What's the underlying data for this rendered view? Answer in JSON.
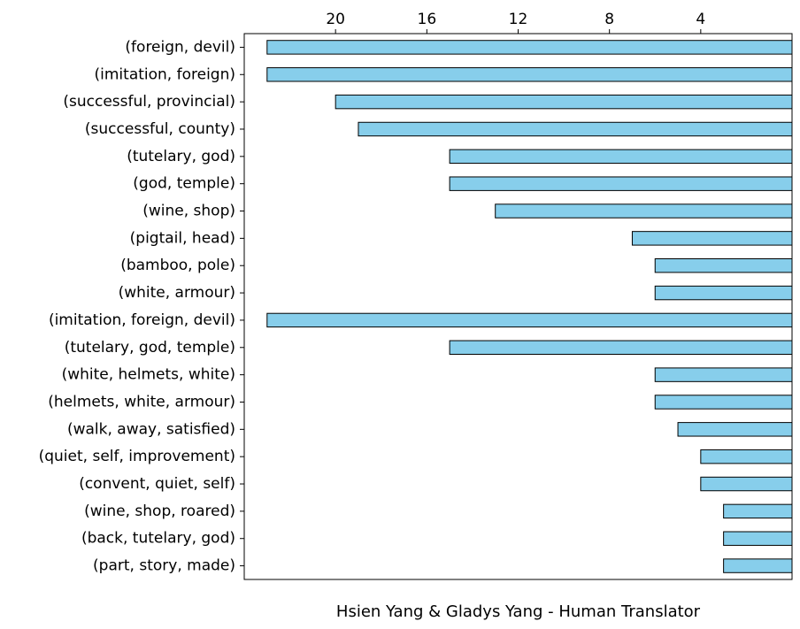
{
  "chart_data": {
    "type": "bar",
    "orientation": "horizontal",
    "xaxis_position": "top",
    "xaxis_inverted": true,
    "xlim": [
      0,
      24
    ],
    "xticks": [
      20,
      16,
      12,
      8,
      4
    ],
    "xlabel": "Hsien Yang & Gladys Yang - Human Translator",
    "bar_color": "#87CEEB",
    "bar_edge_color": "#000000",
    "grid": false,
    "categories": [
      "(foreign, devil)",
      "(imitation, foreign)",
      "(successful, provincial)",
      "(successful, county)",
      "(tutelary, god)",
      "(god, temple)",
      "(wine, shop)",
      "(pigtail, head)",
      "(bamboo, pole)",
      "(white, armour)",
      "(imitation, foreign, devil)",
      "(tutelary, god, temple)",
      "(white, helmets, white)",
      "(helmets, white, armour)",
      "(walk, away, satisfied)",
      "(quiet, self, improvement)",
      "(convent, quiet, self)",
      "(wine, shop, roared)",
      "(back, tutelary, god)",
      "(part, story, made)"
    ],
    "values": [
      23,
      23,
      20,
      19,
      15,
      15,
      13,
      7,
      6,
      6,
      23,
      15,
      6,
      6,
      5,
      4,
      4,
      3,
      3,
      3
    ]
  }
}
